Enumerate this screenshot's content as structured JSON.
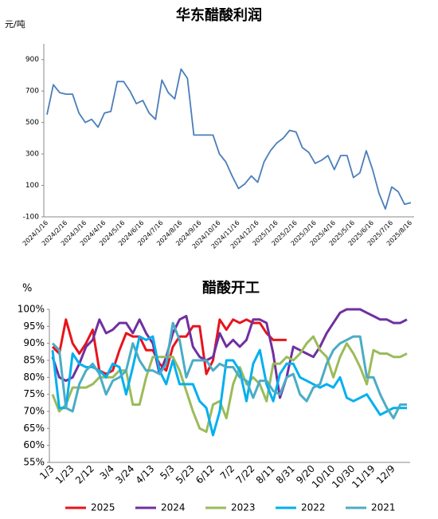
{
  "chart_data": [
    {
      "type": "line",
      "title": "华东醋酸利润",
      "y_label": "元/吨",
      "categories": [
        "2024/1/16",
        null,
        null,
        "2024/2/16",
        null,
        null,
        "2024/3/16",
        null,
        null,
        "2024/4/16",
        null,
        null,
        "2024/5/16",
        null,
        null,
        "2024/6/16",
        null,
        null,
        "2024/7/16",
        null,
        null,
        "2024/8/16",
        null,
        null,
        "2024/9/16",
        null,
        null,
        "2024/10/16",
        null,
        null,
        "2024/11/16",
        null,
        null,
        "2024/12/16",
        null,
        null,
        "2025/1/16",
        null,
        null,
        "2025/2/16",
        null,
        null,
        "2025/3/16",
        null,
        null,
        "2025/4/16",
        null,
        null,
        "2025/5/16",
        null,
        null,
        "2025/6/16",
        null,
        null,
        "2025/7/16",
        null,
        null,
        "2025/8/16"
      ],
      "series": [
        {
          "color": "#4a7ebb",
          "values": [
            550,
            740,
            690,
            680,
            680,
            560,
            500,
            520,
            470,
            560,
            570,
            760,
            760,
            700,
            620,
            640,
            560,
            520,
            770,
            690,
            650,
            840,
            780,
            420,
            420,
            420,
            420,
            300,
            250,
            160,
            80,
            110,
            160,
            120,
            250,
            320,
            370,
            400,
            450,
            440,
            340,
            310,
            240,
            260,
            290,
            200,
            290,
            290,
            150,
            180,
            320,
            200,
            50,
            -50,
            90,
            60,
            -20,
            -10
          ]
        }
      ],
      "ylim": [
        -100,
        1000
      ],
      "yticks": [
        -100,
        100,
        300,
        500,
        700,
        900
      ],
      "grid": false,
      "x_rotate": true
    },
    {
      "type": "line",
      "title": "醋酸开工",
      "y_label": "%",
      "categories": [
        "1/3",
        null,
        null,
        "1/23",
        null,
        null,
        "2/12",
        null,
        null,
        "3/4",
        null,
        null,
        "3/24",
        null,
        null,
        "4/13",
        null,
        null,
        "5/3",
        null,
        null,
        "5/23",
        null,
        null,
        "6/12",
        null,
        null,
        "7/2",
        null,
        null,
        "7/22",
        null,
        null,
        "8/11",
        null,
        null,
        "8/31",
        null,
        null,
        "9/20",
        null,
        null,
        "10/10",
        null,
        null,
        "10/30",
        null,
        null,
        "11/19",
        null,
        null,
        "12/9",
        null,
        null
      ],
      "series": [
        {
          "name": "2025",
          "color": "#e8141c",
          "values": [
            89,
            87,
            97,
            90,
            87,
            90,
            94,
            82,
            81,
            82,
            88,
            93,
            92,
            92,
            88,
            88,
            84,
            82,
            89,
            92,
            92,
            95,
            95,
            81,
            85,
            97,
            94,
            97,
            96,
            97,
            96,
            96,
            93,
            91,
            91,
            91,
            null,
            null,
            null,
            null,
            null,
            null,
            null,
            null,
            null,
            null,
            null,
            null,
            null,
            null,
            null,
            null,
            null,
            null
          ]
        },
        {
          "name": "2024",
          "color": "#7030a0",
          "values": [
            86,
            80,
            79,
            80,
            84,
            89,
            91,
            97,
            93,
            94,
            96,
            96,
            93,
            97,
            93,
            90,
            81,
            86,
            93,
            97,
            98,
            89,
            86,
            85,
            86,
            93,
            89,
            91,
            89,
            91,
            97,
            97,
            96,
            87,
            74,
            80,
            89,
            88,
            87,
            86,
            89,
            93,
            96,
            99,
            100,
            100,
            100,
            99,
            98,
            97,
            97,
            96,
            96,
            97
          ]
        },
        {
          "name": "2023",
          "color": "#9bbb59",
          "values": [
            75,
            70,
            72,
            77,
            77,
            77,
            78,
            80,
            80,
            80,
            82,
            82,
            72,
            72,
            80,
            86,
            86,
            86,
            86,
            82,
            76,
            70,
            65,
            64,
            72,
            73,
            68,
            78,
            83,
            78,
            80,
            78,
            73,
            84,
            84,
            86,
            85,
            87,
            90,
            92,
            88,
            86,
            80,
            86,
            90,
            87,
            83,
            78,
            88,
            87,
            87,
            86,
            86,
            87
          ]
        },
        {
          "name": "2022",
          "color": "#00b0f0",
          "values": [
            88,
            71,
            71,
            87,
            84,
            83,
            83,
            82,
            80,
            84,
            83,
            75,
            83,
            92,
            91,
            92,
            82,
            78,
            85,
            78,
            78,
            78,
            73,
            71,
            63,
            70,
            85,
            85,
            82,
            73,
            84,
            88,
            78,
            73,
            81,
            84,
            84,
            80,
            79,
            78,
            77,
            78,
            77,
            80,
            74,
            73,
            74,
            75,
            72,
            69,
            70,
            71,
            71,
            71
          ]
        },
        {
          "name": "2021",
          "color": "#4bacc6",
          "values": [
            90,
            88,
            71,
            70,
            78,
            82,
            84,
            81,
            75,
            79,
            80,
            82,
            90,
            85,
            82,
            82,
            81,
            84,
            96,
            91,
            80,
            85,
            85,
            85,
            82,
            84,
            83,
            83,
            80,
            79,
            74,
            79,
            79,
            76,
            75,
            80,
            81,
            75,
            73,
            77,
            78,
            84,
            88,
            90,
            91,
            92,
            92,
            80,
            80,
            75,
            71,
            68,
            72,
            72
          ]
        }
      ],
      "ylim": [
        55,
        100
      ],
      "yticks": [
        {
          "value": 55,
          "label": "55%"
        },
        {
          "value": 60,
          "label": "60%"
        },
        {
          "value": 65,
          "label": "65%"
        },
        {
          "value": 70,
          "label": "70%"
        },
        {
          "value": 75,
          "label": "75%"
        },
        {
          "value": 80,
          "label": "80%"
        },
        {
          "value": 85,
          "label": "85%"
        },
        {
          "value": 90,
          "label": "90%"
        },
        {
          "value": 95,
          "label": "95%"
        },
        {
          "value": 100,
          "label": "100%"
        }
      ],
      "grid": false,
      "x_rotate": true,
      "legend": "bottom"
    }
  ]
}
